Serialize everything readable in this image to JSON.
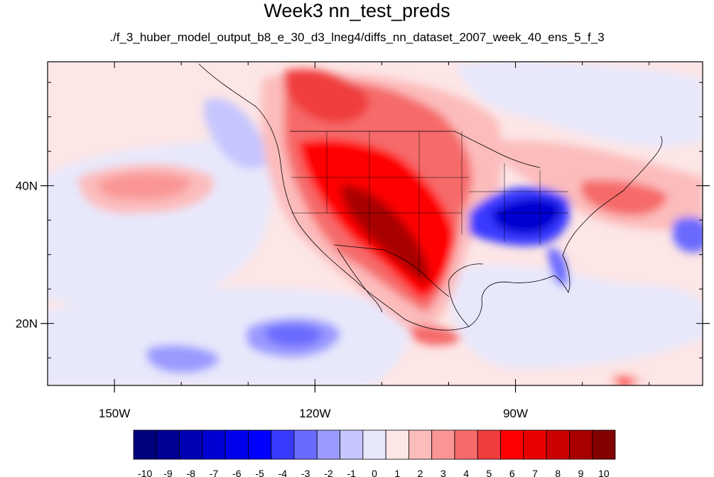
{
  "title": "Week3 nn_test_preds",
  "subtitle": "./f_3_huber_model_output_b8_e_30_d3_lneg4/diffs_nn_dataset_2007_week_40_ens_5_f_3",
  "map": {
    "lon_range": [
      -160,
      -62
    ],
    "lat_range": [
      11,
      58
    ],
    "x_ticks": [
      {
        "lon": -150,
        "label": "150W"
      },
      {
        "lon": -120,
        "label": "120W"
      },
      {
        "lon": -90,
        "label": "90W"
      }
    ],
    "y_ticks": [
      {
        "lat": 20,
        "label": "20N"
      },
      {
        "lat": 40,
        "label": "40N"
      }
    ]
  },
  "colorbar": {
    "labels": [
      "-10",
      "-9",
      "-8",
      "-7",
      "-6",
      "-5",
      "-4",
      "-3",
      "-2",
      "-1",
      "0",
      "1",
      "2",
      "3",
      "4",
      "5",
      "6",
      "7",
      "8",
      "9",
      "10"
    ],
    "colors": [
      "#00007d",
      "#000096",
      "#0000b4",
      "#0000d2",
      "#0000ed",
      "#0000ff",
      "#3a3aff",
      "#6a6aff",
      "#9a9aff",
      "#c6c6ff",
      "#e8e8fb",
      "#fde6e6",
      "#fcbcbc",
      "#fa9595",
      "#f66a6a",
      "#f03c3c",
      "#ff0000",
      "#e80000",
      "#cc0000",
      "#a80000",
      "#820000"
    ]
  }
}
